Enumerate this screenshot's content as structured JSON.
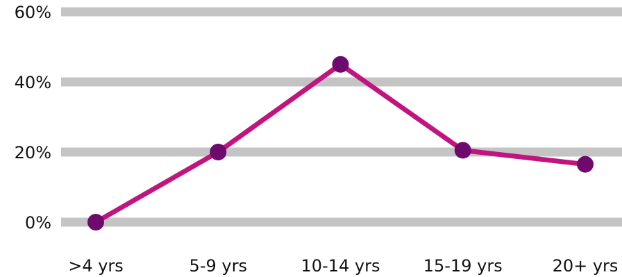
{
  "chart_data": {
    "type": "line",
    "title": "",
    "xlabel": "",
    "ylabel": "",
    "categories": [
      ">4 yrs",
      "5-9 yrs",
      "10-14 yrs",
      "15-19 yrs",
      "20+ yrs"
    ],
    "series": [
      {
        "values": [
          0,
          20,
          45,
          20.5,
          16.5
        ],
        "color": "#c0157f",
        "marker_color": "#6e0a6e"
      }
    ],
    "ylim": [
      0,
      60
    ],
    "y_ticks": [
      {
        "value": 0,
        "label": "0%"
      },
      {
        "value": 20,
        "label": "20%"
      },
      {
        "value": 40,
        "label": "40%"
      },
      {
        "value": 60,
        "label": "60%"
      }
    ],
    "grid": true,
    "grid_color": "#c4c4c4",
    "legend": "none"
  }
}
